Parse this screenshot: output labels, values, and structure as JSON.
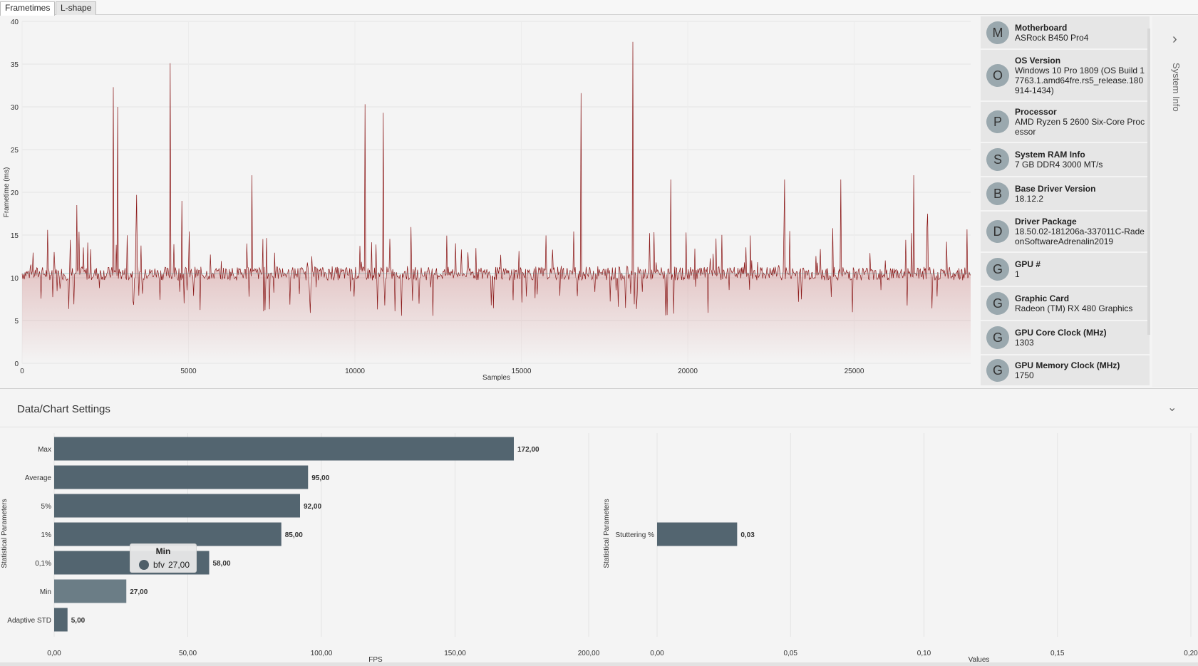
{
  "tabs": [
    {
      "label": "Frametimes",
      "active": true
    },
    {
      "label": "L-shape",
      "active": false
    }
  ],
  "frametime_chart": {
    "chart_data": {
      "type": "line",
      "xlabel": "Samples",
      "ylabel": "Frametime (ms)",
      "xlim": [
        0,
        28500
      ],
      "ylim": [
        0,
        40
      ],
      "x_ticks": [
        0,
        5000,
        10000,
        15000,
        20000,
        25000
      ],
      "y_ticks": [
        0,
        5,
        10,
        15,
        20,
        25,
        30,
        35,
        40
      ],
      "baseline_ms": 10.5,
      "spikes": [
        {
          "x": 1650,
          "y": 18.5
        },
        {
          "x": 2750,
          "y": 32.3
        },
        {
          "x": 2870,
          "y": 30.0
        },
        {
          "x": 3450,
          "y": 19.7
        },
        {
          "x": 4450,
          "y": 35.1
        },
        {
          "x": 4800,
          "y": 19.0
        },
        {
          "x": 6900,
          "y": 22.0
        },
        {
          "x": 10300,
          "y": 30.3
        },
        {
          "x": 10850,
          "y": 29.3
        },
        {
          "x": 16800,
          "y": 31.6
        },
        {
          "x": 18350,
          "y": 37.6
        },
        {
          "x": 19500,
          "y": 21.5
        },
        {
          "x": 22900,
          "y": 21.5
        },
        {
          "x": 24600,
          "y": 21.5
        },
        {
          "x": 26800,
          "y": 22.0
        },
        {
          "x": 27200,
          "y": 17.5
        }
      ],
      "grid": true,
      "series": [
        {
          "name": "bfv",
          "color": "#8b1a1a"
        }
      ]
    }
  },
  "system_info": {
    "items": [
      {
        "initial": "M",
        "title": "Motherboard",
        "value": "ASRock B450 Pro4"
      },
      {
        "initial": "O",
        "title": "OS Version",
        "value": "Windows 10 Pro 1809 (OS Build 17763.1.amd64fre.rs5_release.180914-1434)"
      },
      {
        "initial": "P",
        "title": "Processor",
        "value": "AMD Ryzen 5 2600 Six-Core Processor"
      },
      {
        "initial": "S",
        "title": "System RAM Info",
        "value": "7 GB DDR4 3000 MT/s"
      },
      {
        "initial": "B",
        "title": "Base Driver Version",
        "value": "18.12.2"
      },
      {
        "initial": "D",
        "title": "Driver Package",
        "value": "18.50.02-181206a-337011C-RadeonSoftwareAdrenalin2019"
      },
      {
        "initial": "G",
        "title": "GPU #",
        "value": "1"
      },
      {
        "initial": "G",
        "title": "Graphic Card",
        "value": "Radeon (TM) RX 480 Graphics"
      },
      {
        "initial": "G",
        "title": "GPU Core Clock (MHz)",
        "value": "1303"
      },
      {
        "initial": "G",
        "title": "GPU Memory Clock (MHz)",
        "value": "1750"
      }
    ],
    "panel_label": "System Info",
    "chevron_icon": "chevron-right-icon"
  },
  "settings": {
    "title": "Data/Chart Settings",
    "chevron_icon": "chevron-down-icon"
  },
  "statistics_chart": {
    "chart_data": {
      "type": "bar",
      "orientation": "horizontal",
      "categories": [
        "Max",
        "Average",
        "5%",
        "1%",
        "0,1%",
        "Min",
        "Adaptive STD"
      ],
      "values": [
        172,
        95,
        92,
        85,
        58,
        27,
        5
      ],
      "value_labels": [
        "172,00",
        "95,00",
        "92,00",
        "85,00",
        "58,00",
        "27,00",
        "5,00"
      ],
      "xlabel": "FPS",
      "ylabel": "Statistical Parameters",
      "xlim": [
        0,
        200
      ],
      "x_tick_labels": [
        "0,00",
        "50,00",
        "100,00",
        "150,00",
        "200,00"
      ],
      "legend": [
        {
          "name": "bfv"
        }
      ],
      "grid": true,
      "bar_color": "#536570",
      "highlight_color": "#6b7d86"
    }
  },
  "stutter_chart": {
    "chart_data": {
      "type": "bar",
      "orientation": "horizontal",
      "categories": [
        "Stuttering %"
      ],
      "values": [
        0.03
      ],
      "value_labels": [
        "0,03"
      ],
      "xlabel": "Values",
      "ylabel": "Statistical Parameters",
      "xlim": [
        0,
        0.2
      ],
      "x_tick_labels": [
        "0,00",
        "0,05",
        "0,10",
        "0,15",
        "0,20"
      ],
      "legend": [
        {
          "name": "bfv"
        }
      ],
      "grid": true,
      "bar_color": "#536570"
    }
  },
  "tooltip": {
    "title": "Min",
    "series": "bfv",
    "value": "27,00"
  }
}
